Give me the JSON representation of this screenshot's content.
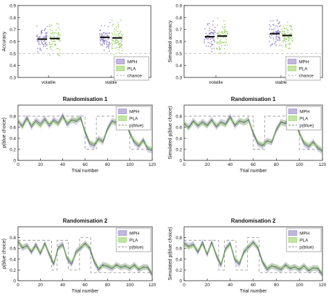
{
  "colors": {
    "mph": "#8e7cc3",
    "pla": "#8fcf5a",
    "chance": "#bdbdbd",
    "axis": "#222222",
    "mean": "#111111"
  },
  "legend": {
    "mph": "MPH",
    "pla": "PLA",
    "chance": "chance",
    "pblue": "p(blue)"
  },
  "chart_data": [
    {
      "type": "scatter",
      "ylabel": "Accuracy",
      "categories": [
        "volatile",
        "stable"
      ],
      "ylim": [
        0.3,
        0.9
      ],
      "yticks": [
        "0.3",
        "0.4",
        "0.5",
        "0.6",
        "0.7",
        "0.8",
        "0.9"
      ],
      "chance": 0.5,
      "series": [
        {
          "name": "MPH",
          "means": [
            0.62,
            0.635
          ]
        },
        {
          "name": "PLA",
          "means": [
            0.625,
            0.63
          ]
        }
      ]
    },
    {
      "type": "scatter",
      "ylabel": "Simulated accuracy",
      "categories": [
        "volatile",
        "stable"
      ],
      "ylim": [
        0.3,
        0.9
      ],
      "yticks": [
        "0.3",
        "0.4",
        "0.5",
        "0.6",
        "0.7",
        "0.8",
        "0.9"
      ],
      "chance": 0.5,
      "series": [
        {
          "name": "MPH",
          "means": [
            0.64,
            0.665
          ]
        },
        {
          "name": "PLA",
          "means": [
            0.645,
            0.65
          ]
        }
      ]
    },
    {
      "type": "line",
      "title": "Randomisation 1",
      "xlabel": "Trial number",
      "ylabel": "p(blue choice)",
      "xlim": [
        0,
        120
      ],
      "ylim": [
        0,
        1
      ],
      "xticks": [
        "0",
        "20",
        "40",
        "60",
        "80",
        "100",
        "120"
      ],
      "yticks": [
        "0",
        "0.2",
        "0.4",
        "0.6",
        "0.8"
      ],
      "x": [
        0,
        4,
        8,
        12,
        16,
        20,
        24,
        28,
        32,
        36,
        40,
        44,
        48,
        52,
        56,
        60,
        64,
        68,
        72,
        76,
        80,
        84,
        88,
        92,
        96,
        100,
        104,
        108,
        112,
        116,
        120
      ],
      "series": [
        {
          "name": "MPH",
          "values": [
            0.7,
            0.63,
            0.78,
            0.6,
            0.73,
            0.66,
            0.76,
            0.62,
            0.74,
            0.68,
            0.82,
            0.64,
            0.74,
            0.7,
            0.78,
            0.5,
            0.3,
            0.26,
            0.4,
            0.33,
            0.58,
            0.72,
            0.67,
            0.84,
            0.76,
            0.5,
            0.32,
            0.25,
            0.38,
            0.2,
            0.18
          ]
        },
        {
          "name": "PLA",
          "values": [
            0.72,
            0.6,
            0.75,
            0.64,
            0.7,
            0.62,
            0.73,
            0.66,
            0.71,
            0.65,
            0.78,
            0.68,
            0.72,
            0.73,
            0.75,
            0.53,
            0.33,
            0.29,
            0.37,
            0.36,
            0.55,
            0.69,
            0.7,
            0.86,
            0.73,
            0.47,
            0.35,
            0.28,
            0.35,
            0.23,
            0.2
          ]
        }
      ],
      "pblue": [
        [
          0,
          0.8
        ],
        [
          60,
          0.8
        ],
        [
          60,
          0.2
        ],
        [
          70,
          0.2
        ],
        [
          70,
          0.8
        ],
        [
          100,
          0.8
        ],
        [
          100,
          0.2
        ],
        [
          120,
          0.2
        ]
      ]
    },
    {
      "type": "line",
      "title": "Randomisation 1",
      "xlabel": "Trial number",
      "ylabel": "Simulated p(blue choice)",
      "xlim": [
        0,
        120
      ],
      "ylim": [
        0,
        1
      ],
      "xticks": [
        "0",
        "20",
        "40",
        "60",
        "80",
        "100",
        "120"
      ],
      "yticks": [
        "0",
        "0.2",
        "0.4",
        "0.6",
        "0.8"
      ],
      "x": [
        0,
        4,
        8,
        12,
        16,
        20,
        24,
        28,
        32,
        36,
        40,
        44,
        48,
        52,
        56,
        60,
        64,
        68,
        72,
        76,
        80,
        84,
        88,
        92,
        96,
        100,
        104,
        108,
        112,
        116,
        120
      ],
      "series": [
        {
          "name": "MPH",
          "values": [
            0.66,
            0.6,
            0.72,
            0.62,
            0.7,
            0.64,
            0.74,
            0.6,
            0.7,
            0.66,
            0.8,
            0.62,
            0.72,
            0.68,
            0.74,
            0.48,
            0.3,
            0.26,
            0.36,
            0.32,
            0.56,
            0.7,
            0.66,
            0.86,
            0.76,
            0.5,
            0.3,
            0.24,
            0.34,
            0.22,
            0.16
          ]
        },
        {
          "name": "PLA",
          "values": [
            0.68,
            0.58,
            0.7,
            0.64,
            0.68,
            0.62,
            0.72,
            0.63,
            0.68,
            0.64,
            0.77,
            0.65,
            0.7,
            0.7,
            0.72,
            0.5,
            0.32,
            0.28,
            0.34,
            0.34,
            0.54,
            0.68,
            0.68,
            0.88,
            0.73,
            0.48,
            0.33,
            0.27,
            0.32,
            0.24,
            0.18
          ]
        }
      ],
      "pblue": [
        [
          0,
          0.8
        ],
        [
          60,
          0.8
        ],
        [
          60,
          0.2
        ],
        [
          70,
          0.2
        ],
        [
          70,
          0.8
        ],
        [
          100,
          0.8
        ],
        [
          100,
          0.2
        ],
        [
          120,
          0.2
        ]
      ]
    },
    {
      "type": "line",
      "title": "Randomisation 2",
      "xlabel": "Trial number",
      "ylabel": "p(blue choice)",
      "xlim": [
        0,
        120
      ],
      "ylim": [
        0,
        1
      ],
      "xticks": [
        "0",
        "20",
        "40",
        "60",
        "80",
        "100",
        "120"
      ],
      "yticks": [
        "0",
        "0.2",
        "0.4",
        "0.6",
        "0.8"
      ],
      "x": [
        0,
        4,
        8,
        12,
        16,
        20,
        24,
        28,
        32,
        36,
        40,
        44,
        48,
        52,
        56,
        60,
        64,
        68,
        72,
        76,
        80,
        84,
        88,
        92,
        96,
        100,
        104,
        108,
        112,
        116,
        120
      ],
      "series": [
        {
          "name": "MPH",
          "values": [
            0.74,
            0.6,
            0.66,
            0.52,
            0.68,
            0.5,
            0.7,
            0.48,
            0.3,
            0.62,
            0.68,
            0.4,
            0.3,
            0.55,
            0.6,
            0.7,
            0.6,
            0.35,
            0.2,
            0.3,
            0.26,
            0.22,
            0.3,
            0.24,
            0.28,
            0.22,
            0.3,
            0.2,
            0.26,
            0.24,
            0.1
          ]
        },
        {
          "name": "PLA",
          "values": [
            0.72,
            0.62,
            0.64,
            0.55,
            0.64,
            0.52,
            0.68,
            0.5,
            0.32,
            0.6,
            0.66,
            0.42,
            0.33,
            0.52,
            0.62,
            0.68,
            0.62,
            0.38,
            0.23,
            0.28,
            0.28,
            0.24,
            0.28,
            0.26,
            0.26,
            0.24,
            0.28,
            0.22,
            0.24,
            0.26,
            0.12
          ]
        }
      ],
      "pblue": [
        [
          0,
          0.75
        ],
        [
          30,
          0.75
        ],
        [
          30,
          0.2
        ],
        [
          35,
          0.2
        ],
        [
          35,
          0.75
        ],
        [
          45,
          0.75
        ],
        [
          45,
          0.2
        ],
        [
          55,
          0.2
        ],
        [
          55,
          0.8
        ],
        [
          65,
          0.8
        ],
        [
          65,
          0.15
        ],
        [
          120,
          0.15
        ]
      ]
    },
    {
      "type": "line",
      "title": "Randomisation 2",
      "xlabel": "Trial number",
      "ylabel": "Simulated p(blue choice)",
      "xlim": [
        0,
        120
      ],
      "ylim": [
        0,
        1
      ],
      "xticks": [
        "0",
        "20",
        "40",
        "60",
        "80",
        "100",
        "120"
      ],
      "yticks": [
        "0",
        "0.2",
        "0.4",
        "0.6",
        "0.8"
      ],
      "x": [
        0,
        4,
        8,
        12,
        16,
        20,
        24,
        28,
        32,
        36,
        40,
        44,
        48,
        52,
        56,
        60,
        64,
        68,
        72,
        76,
        80,
        84,
        88,
        92,
        96,
        100,
        104,
        108,
        112,
        116,
        120
      ],
      "series": [
        {
          "name": "MPH",
          "values": [
            0.7,
            0.64,
            0.68,
            0.52,
            0.72,
            0.48,
            0.72,
            0.46,
            0.28,
            0.6,
            0.7,
            0.38,
            0.3,
            0.55,
            0.62,
            0.72,
            0.6,
            0.34,
            0.2,
            0.28,
            0.24,
            0.2,
            0.3,
            0.22,
            0.26,
            0.2,
            0.28,
            0.18,
            0.24,
            0.22,
            0.1
          ]
        },
        {
          "name": "PLA",
          "values": [
            0.68,
            0.62,
            0.66,
            0.55,
            0.68,
            0.5,
            0.7,
            0.48,
            0.3,
            0.58,
            0.68,
            0.4,
            0.33,
            0.52,
            0.64,
            0.7,
            0.62,
            0.36,
            0.23,
            0.27,
            0.26,
            0.22,
            0.28,
            0.24,
            0.25,
            0.22,
            0.27,
            0.2,
            0.23,
            0.24,
            0.12
          ]
        }
      ],
      "pblue": [
        [
          0,
          0.75
        ],
        [
          30,
          0.75
        ],
        [
          30,
          0.2
        ],
        [
          35,
          0.2
        ],
        [
          35,
          0.75
        ],
        [
          45,
          0.75
        ],
        [
          45,
          0.2
        ],
        [
          55,
          0.2
        ],
        [
          55,
          0.8
        ],
        [
          65,
          0.8
        ],
        [
          65,
          0.15
        ],
        [
          120,
          0.15
        ]
      ]
    }
  ]
}
